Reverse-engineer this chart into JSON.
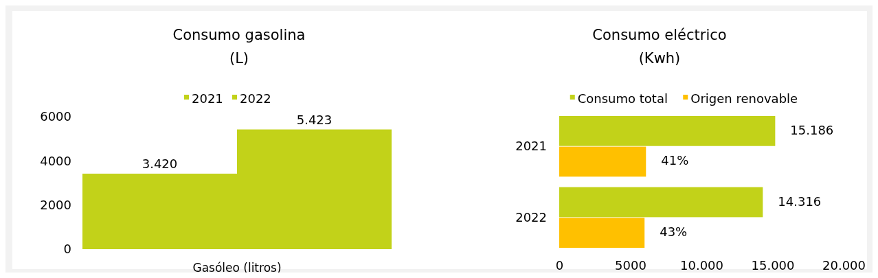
{
  "chart_data": [
    {
      "type": "bar",
      "title": "Consumo gasolina\n(L)",
      "xlabel": "Gasóleo (litros)",
      "categories": [
        null,
        null
      ],
      "stacked": true,
      "series": [
        {
          "name": "2021",
          "color": "#c2d219",
          "values": [
            3420,
            null
          ],
          "value_labels": [
            "3.420",
            null
          ]
        },
        {
          "name": "2022",
          "color": "#c2d219",
          "values": [
            null,
            5423
          ],
          "value_labels": [
            null,
            "5.423"
          ]
        }
      ],
      "ylim": [
        0,
        6000
      ],
      "yticks": [
        0,
        2000,
        4000,
        6000
      ],
      "legend": "top",
      "grid": false
    },
    {
      "type": "bar",
      "orientation": "horizontal",
      "title": "Consumo eléctrico\n(Kwh)",
      "categories": [
        "2021",
        "2022"
      ],
      "series": [
        {
          "name": "Consumo total",
          "color": "#c2d219",
          "values": [
            15186,
            14316
          ],
          "value_labels": [
            "15.186",
            "14.316"
          ]
        },
        {
          "name": "Origen renovable",
          "color": "#ffc000",
          "values": [
            6100,
            6000
          ]
        }
      ],
      "annotations": [
        {
          "text": "41%",
          "x": 6100,
          "y": "2021"
        },
        {
          "text": "43%",
          "x": 6000,
          "y": "2022"
        }
      ],
      "xlim": [
        0,
        20000
      ],
      "xticks": [
        0,
        5000,
        {
          "value": 10000,
          "label": "10.000"
        },
        {
          "value": 15000,
          "label": "15.000"
        },
        {
          "value": 20000,
          "label": "20.000"
        }
      ],
      "legend": "top",
      "grid": false
    }
  ]
}
